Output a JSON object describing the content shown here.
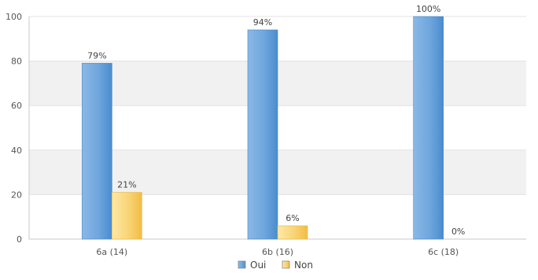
{
  "chart_data": {
    "type": "bar",
    "categories": [
      "6a (14)",
      "6b (16)",
      "6c (18)"
    ],
    "series": [
      {
        "name": "Oui",
        "values": [
          79,
          94,
          100
        ],
        "labels": [
          "79%",
          "94%",
          "100%"
        ],
        "color": "#5b9bd5"
      },
      {
        "name": "Non",
        "values": [
          21,
          6,
          0
        ],
        "labels": [
          "21%",
          "6%",
          "0%"
        ],
        "color": "#f6c85f"
      }
    ],
    "ylim": [
      0,
      100
    ],
    "yticks": [
      0,
      20,
      40,
      60,
      80,
      100
    ],
    "grid": "alternating horizontal bands",
    "legend_position": "bottom-center"
  }
}
